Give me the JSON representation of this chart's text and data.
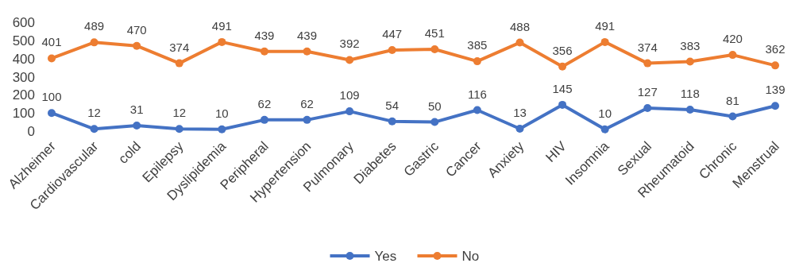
{
  "chart_data": {
    "type": "line",
    "categories": [
      "Alzheimer",
      "Cardiovascular",
      "cold",
      "Epilepsy",
      "Dyslipidemia",
      "Peripheral",
      "Hypertension",
      "Pulmonary",
      "Diabetes",
      "Gastric",
      "Cancer",
      "Anxiety",
      "HIV",
      "Insomnia",
      "Sexual",
      "Rheumatoid",
      "Chronic",
      "Menstrual"
    ],
    "series": [
      {
        "name": "Yes",
        "color": "#4472c4",
        "values": [
          100,
          12,
          31,
          12,
          10,
          62,
          62,
          109,
          54,
          50,
          116,
          13,
          145,
          10,
          127,
          118,
          81,
          139
        ]
      },
      {
        "name": "No",
        "color": "#ed7d31",
        "values": [
          401,
          489,
          470,
          374,
          491,
          439,
          439,
          392,
          447,
          451,
          385,
          488,
          356,
          491,
          374,
          383,
          420,
          362
        ]
      }
    ],
    "ylim": [
      0,
      600
    ],
    "yticks": [
      0,
      100,
      200,
      300,
      400,
      500,
      600
    ],
    "grid": false,
    "legend": "bottom",
    "marker": "circle",
    "line_style": "solid",
    "data_labels": true
  }
}
